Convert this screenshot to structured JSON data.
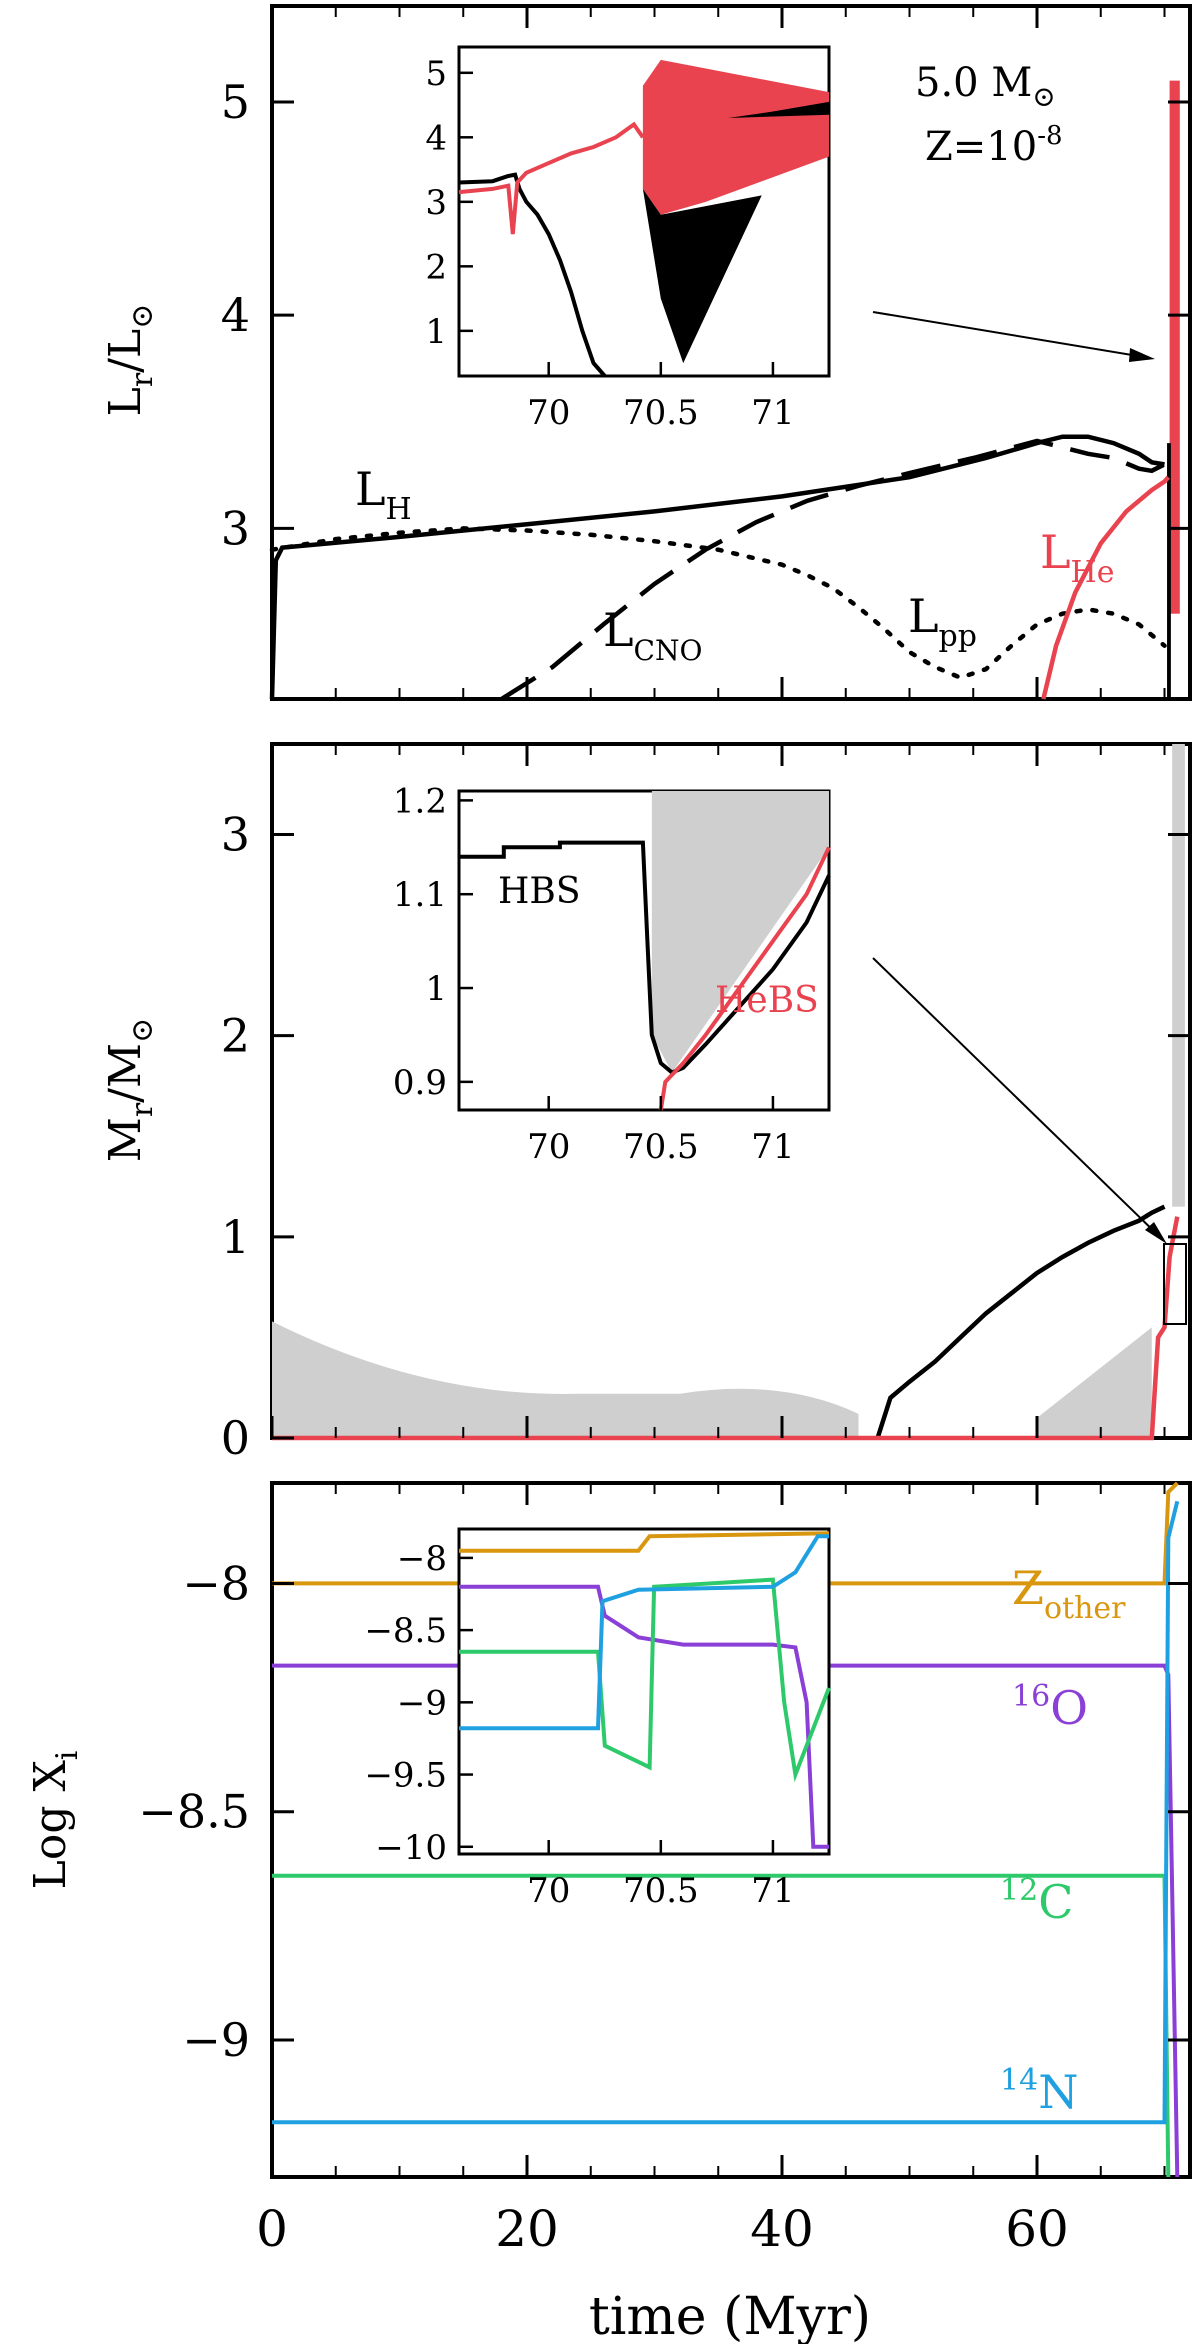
{
  "figure": {
    "xlabel": "time (Myr)",
    "x_ticks": [
      "0",
      "20",
      "40",
      "60"
    ],
    "colors": {
      "black": "#000000",
      "red": "#e8434f",
      "grey": "#cfcfcf",
      "orange": "#d9960f",
      "purple": "#8a3fd6",
      "green": "#2ec96a",
      "blue": "#1fa0e0"
    }
  },
  "chart_data": [
    {
      "type": "line",
      "panel": "top",
      "ylabel_main": "L",
      "ylabel_sub": "r",
      "ylabel_sep": "/L",
      "ylabel_sun": "⊙",
      "y_ticks": [
        "3",
        "4",
        "5"
      ],
      "ylim": [
        2.2,
        5.45
      ],
      "xlim": [
        0,
        72
      ],
      "annotation": {
        "mass": "5.0 M",
        "sun": "⊙",
        "z": "Z=10",
        "z_exp": "-8"
      },
      "labels": {
        "H": "L",
        "H_sub": "H",
        "CNO": "L",
        "CNO_sub": "CNO",
        "pp": "L",
        "pp_sub": "pp",
        "He": "L",
        "He_sub": "He"
      },
      "series": [
        {
          "color": "#000000",
          "style": "solid",
          "points": [
            [
              0,
              2.2
            ],
            [
              0.3,
              2.85
            ],
            [
              0.8,
              2.91
            ],
            [
              10,
              2.96
            ],
            [
              20,
              3.02
            ],
            [
              30,
              3.08
            ],
            [
              40,
              3.15
            ],
            [
              50,
              3.24
            ],
            [
              56,
              3.33
            ],
            [
              60,
              3.4
            ],
            [
              62,
              3.43
            ],
            [
              64,
              3.43
            ],
            [
              66,
              3.4
            ],
            [
              68,
              3.35
            ],
            [
              69,
              3.31
            ],
            [
              70,
              3.3
            ]
          ]
        },
        {
          "color": "#000000",
          "style": "dashed",
          "points": [
            [
              18,
              2.2
            ],
            [
              22,
              2.35
            ],
            [
              26,
              2.55
            ],
            [
              30,
              2.74
            ],
            [
              34,
              2.9
            ],
            [
              38,
              3.03
            ],
            [
              42,
              3.13
            ],
            [
              46,
              3.2
            ],
            [
              50,
              3.26
            ],
            [
              55,
              3.33
            ],
            [
              60,
              3.41
            ],
            [
              62,
              3.38
            ],
            [
              64,
              3.35
            ],
            [
              66,
              3.33
            ],
            [
              68,
              3.28
            ],
            [
              69,
              3.27
            ],
            [
              70,
              3.3
            ]
          ]
        },
        {
          "color": "#000000",
          "style": "dotted",
          "points": [
            [
              0,
              2.9
            ],
            [
              5,
              2.95
            ],
            [
              10,
              2.98
            ],
            [
              15,
              3.0
            ],
            [
              20,
              2.99
            ],
            [
              25,
              2.97
            ],
            [
              30,
              2.94
            ],
            [
              35,
              2.9
            ],
            [
              40,
              2.83
            ],
            [
              42,
              2.78
            ],
            [
              44,
              2.72
            ],
            [
              46,
              2.63
            ],
            [
              48,
              2.53
            ],
            [
              50,
              2.42
            ],
            [
              52,
              2.35
            ],
            [
              54,
              2.3
            ],
            [
              56,
              2.34
            ],
            [
              58,
              2.45
            ],
            [
              60,
              2.55
            ],
            [
              62,
              2.6
            ],
            [
              64,
              2.62
            ],
            [
              66,
              2.6
            ],
            [
              68,
              2.55
            ],
            [
              70,
              2.45
            ]
          ]
        },
        {
          "color": "#e8434f",
          "style": "solid",
          "points": [
            [
              60.5,
              2.2
            ],
            [
              61.5,
              2.45
            ],
            [
              63,
              2.7
            ],
            [
              65,
              2.93
            ],
            [
              67,
              3.08
            ],
            [
              69,
              3.18
            ],
            [
              70,
              3.22
            ],
            [
              70.3,
              3.24
            ]
          ]
        }
      ],
      "inset": {
        "xlim": [
          69.6,
          71.25
        ],
        "ylim": [
          0.3,
          5.4
        ],
        "x_ticks": [
          "70",
          "70.5",
          "71"
        ],
        "y_ticks": [
          "1",
          "2",
          "3",
          "4",
          "5"
        ],
        "series": [
          {
            "color": "#000000",
            "points": [
              [
                69.6,
                3.3
              ],
              [
                69.75,
                3.32
              ],
              [
                69.82,
                3.4
              ],
              [
                69.85,
                3.42
              ],
              [
                69.87,
                3.2
              ],
              [
                69.9,
                3.0
              ],
              [
                69.95,
                2.8
              ],
              [
                70.0,
                2.5
              ],
              [
                70.05,
                2.1
              ],
              [
                70.1,
                1.6
              ],
              [
                70.15,
                1.0
              ],
              [
                70.2,
                0.5
              ],
              [
                70.25,
                0.3
              ]
            ]
          },
          {
            "color": "#e8434f",
            "points": [
              [
                69.6,
                3.15
              ],
              [
                69.75,
                3.2
              ],
              [
                69.82,
                3.25
              ],
              [
                69.84,
                2.5
              ],
              [
                69.86,
                3.3
              ],
              [
                69.9,
                3.45
              ],
              [
                70.0,
                3.6
              ],
              [
                70.1,
                3.75
              ],
              [
                70.2,
                3.85
              ],
              [
                70.3,
                4.0
              ],
              [
                70.38,
                4.2
              ],
              [
                70.42,
                4.0
              ]
            ]
          }
        ]
      }
    },
    {
      "type": "line",
      "panel": "middle",
      "ylabel_main": "M",
      "ylabel_sub": "r",
      "ylabel_sep": "/M",
      "ylabel_sun": "⊙",
      "y_ticks": [
        "0",
        "1",
        "2",
        "3"
      ],
      "ylim": [
        0,
        3.45
      ],
      "xlim": [
        0,
        72
      ],
      "series": [
        {
          "color": "#000000",
          "points": [
            [
              47.5,
              0
            ],
            [
              48.5,
              0.2
            ],
            [
              50,
              0.28
            ],
            [
              52,
              0.38
            ],
            [
              54,
              0.5
            ],
            [
              56,
              0.62
            ],
            [
              58,
              0.72
            ],
            [
              60,
              0.82
            ],
            [
              62,
              0.9
            ],
            [
              64,
              0.97
            ],
            [
              66,
              1.03
            ],
            [
              68,
              1.08
            ],
            [
              69,
              1.12
            ],
            [
              70,
              1.15
            ]
          ]
        },
        {
          "color": "#e8434f",
          "points": [
            [
              0,
              0
            ],
            [
              69,
              0
            ],
            [
              69.2,
              0.2
            ],
            [
              69.5,
              0.5
            ],
            [
              70,
              0.55
            ],
            [
              70.4,
              0.9
            ],
            [
              70.7,
              1.0
            ],
            [
              71,
              1.1
            ]
          ]
        }
      ],
      "inset": {
        "xlim": [
          69.6,
          71.25
        ],
        "ylim": [
          0.87,
          1.21
        ],
        "x_ticks": [
          "70",
          "70.5",
          "71"
        ],
        "y_ticks": [
          "0.9",
          "1",
          "1.1",
          "1.2"
        ],
        "labels": {
          "hbs": "HBS",
          "hebs": "HeBS"
        },
        "series": [
          {
            "color": "#000000",
            "points": [
              [
                69.6,
                1.14
              ],
              [
                69.8,
                1.14
              ],
              [
                69.8,
                1.15
              ],
              [
                70.05,
                1.15
              ],
              [
                70.05,
                1.155
              ],
              [
                70.42,
                1.155
              ],
              [
                70.44,
                1.05
              ],
              [
                70.46,
                0.95
              ],
              [
                70.5,
                0.92
              ],
              [
                70.55,
                0.91
              ],
              [
                70.6,
                0.915
              ],
              [
                70.7,
                0.94
              ],
              [
                70.85,
                0.98
              ],
              [
                71.0,
                1.02
              ],
              [
                71.15,
                1.07
              ],
              [
                71.25,
                1.12
              ]
            ]
          },
          {
            "color": "#e8434f",
            "points": [
              [
                70.5,
                0.87
              ],
              [
                70.52,
                0.9
              ],
              [
                70.6,
                0.92
              ],
              [
                70.7,
                0.95
              ],
              [
                70.85,
                1.0
              ],
              [
                71.0,
                1.05
              ],
              [
                71.15,
                1.1
              ],
              [
                71.25,
                1.15
              ]
            ]
          }
        ]
      }
    },
    {
      "type": "line",
      "panel": "bottom",
      "ylabel_main": "Log X",
      "ylabel_sub": "i",
      "y_ticks": [
        "-9",
        "-8.5",
        "-8"
      ],
      "ylim": [
        -9.3,
        -7.78
      ],
      "xlim": [
        0,
        72
      ],
      "labels": {
        "zother": "Z",
        "zother_sub": "other",
        "o16_sup": "16",
        "o16": "O",
        "c12_sup": "12",
        "c12": "C",
        "n14_sup": "14",
        "n14": "N"
      },
      "series": [
        {
          "color": "#d9960f",
          "name": "Zother",
          "points": [
            [
              0,
              -8.0
            ],
            [
              70,
              -8.0
            ],
            [
              70.3,
              -7.8
            ],
            [
              71,
              -7.78
            ]
          ]
        },
        {
          "color": "#8a3fd6",
          "name": "16O",
          "points": [
            [
              0,
              -8.18
            ],
            [
              70,
              -8.18
            ],
            [
              70.3,
              -8.2
            ],
            [
              71,
              -9.3
            ]
          ]
        },
        {
          "color": "#2ec96a",
          "name": "12C",
          "points": [
            [
              0,
              -8.64
            ],
            [
              70,
              -8.64
            ],
            [
              70.3,
              -9.3
            ]
          ]
        },
        {
          "color": "#1fa0e0",
          "name": "14N",
          "points": [
            [
              0,
              -9.18
            ],
            [
              70,
              -9.18
            ],
            [
              70.3,
              -7.9
            ],
            [
              71,
              -7.82
            ]
          ]
        }
      ],
      "inset": {
        "xlim": [
          69.6,
          71.25
        ],
        "ylim": [
          -10.05,
          -7.8
        ],
        "x_ticks": [
          "70",
          "70.5",
          "71"
        ],
        "y_ticks": [
          "-10",
          "-9.5",
          "-9",
          "-8.5",
          "-8"
        ],
        "series": [
          {
            "color": "#d9960f",
            "points": [
              [
                69.6,
                -7.95
              ],
              [
                70.4,
                -7.95
              ],
              [
                70.45,
                -7.85
              ],
              [
                71.25,
                -7.83
              ]
            ]
          },
          {
            "color": "#8a3fd6",
            "points": [
              [
                69.6,
                -8.2
              ],
              [
                70.22,
                -8.2
              ],
              [
                70.25,
                -8.4
              ],
              [
                70.4,
                -8.55
              ],
              [
                70.6,
                -8.6
              ],
              [
                71.0,
                -8.6
              ],
              [
                71.1,
                -8.62
              ],
              [
                71.15,
                -9.0
              ],
              [
                71.18,
                -10.0
              ],
              [
                71.25,
                -10.0
              ]
            ]
          },
          {
            "color": "#2ec96a",
            "points": [
              [
                69.6,
                -8.65
              ],
              [
                70.22,
                -8.65
              ],
              [
                70.25,
                -9.3
              ],
              [
                70.45,
                -9.45
              ],
              [
                70.47,
                -8.2
              ],
              [
                71.0,
                -8.15
              ],
              [
                71.05,
                -9.0
              ],
              [
                71.1,
                -9.5
              ],
              [
                71.15,
                -9.3
              ],
              [
                71.25,
                -8.9
              ]
            ]
          },
          {
            "color": "#1fa0e0",
            "points": [
              [
                69.6,
                -9.18
              ],
              [
                70.22,
                -9.18
              ],
              [
                70.24,
                -8.3
              ],
              [
                70.4,
                -8.22
              ],
              [
                71.0,
                -8.2
              ],
              [
                71.1,
                -8.1
              ],
              [
                71.2,
                -7.85
              ],
              [
                71.25,
                -7.85
              ]
            ]
          }
        ]
      }
    }
  ]
}
